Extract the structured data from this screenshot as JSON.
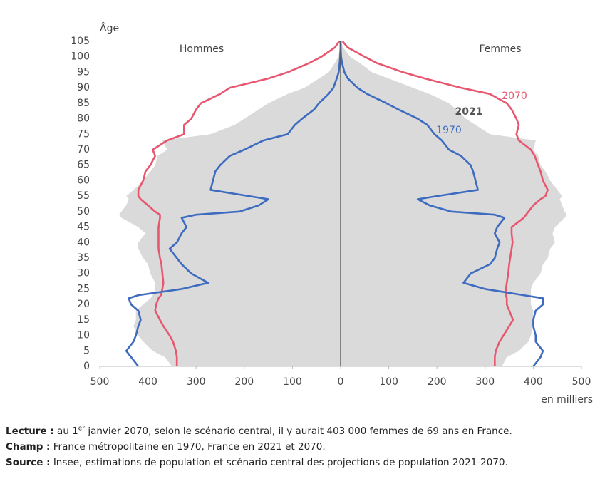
{
  "chart_data": {
    "type": "pyramid",
    "y_label": "Âge",
    "x_label": "en milliers",
    "left_label": "Hommes",
    "right_label": "Femmes",
    "xlim": [
      -500,
      500
    ],
    "xticks": [
      {
        "value": -500,
        "label": "500"
      },
      {
        "value": -400,
        "label": "400"
      },
      {
        "value": -300,
        "label": "300"
      },
      {
        "value": -200,
        "label": "200"
      },
      {
        "value": -100,
        "label": "100"
      },
      0,
      100,
      200,
      300,
      400,
      500
    ],
    "ylim": [
      0,
      105
    ],
    "yticks": [
      0,
      5,
      10,
      15,
      20,
      25,
      30,
      35,
      40,
      45,
      50,
      55,
      60,
      65,
      70,
      75,
      80,
      85,
      90,
      95,
      100,
      105
    ],
    "ages": [
      0,
      3,
      5,
      8,
      10,
      13,
      15,
      18,
      20,
      22,
      23,
      25,
      27,
      30,
      33,
      35,
      38,
      40,
      43,
      45,
      48,
      49,
      50,
      52,
      54,
      55,
      57,
      60,
      63,
      65,
      68,
      70,
      73,
      75,
      78,
      80,
      83,
      85,
      88,
      90,
      93,
      95,
      98,
      100,
      103,
      105
    ],
    "series": [
      {
        "name": "2021",
        "style": "area",
        "color": "#dadada",
        "label_color": "#555555",
        "men": [
          350,
          365,
          390,
          410,
          420,
          430,
          425,
          425,
          410,
          395,
          390,
          385,
          385,
          395,
          400,
          410,
          420,
          420,
          405,
          420,
          455,
          460,
          455,
          445,
          440,
          445,
          430,
          410,
          395,
          385,
          380,
          360,
          370,
          270,
          220,
          200,
          170,
          150,
          110,
          75,
          45,
          25,
          12,
          5,
          1,
          0
        ],
        "women": [
          335,
          345,
          370,
          390,
          395,
          400,
          400,
          400,
          395,
          395,
          395,
          395,
          400,
          415,
          420,
          430,
          435,
          445,
          440,
          445,
          465,
          470,
          465,
          460,
          455,
          460,
          450,
          435,
          425,
          415,
          410,
          400,
          405,
          310,
          280,
          260,
          240,
          225,
          185,
          150,
          100,
          65,
          40,
          20,
          5,
          1
        ]
      },
      {
        "name": "2070",
        "style": "line",
        "color": "#e8566f",
        "label_color": "#e8566f",
        "men": [
          340,
          340,
          342,
          348,
          355,
          368,
          375,
          385,
          383,
          378,
          373,
          370,
          368,
          370,
          372,
          375,
          378,
          378,
          378,
          378,
          375,
          375,
          385,
          400,
          415,
          420,
          420,
          410,
          405,
          395,
          385,
          390,
          360,
          325,
          325,
          310,
          300,
          290,
          250,
          230,
          150,
          110,
          65,
          40,
          12,
          3
        ],
        "women": [
          320,
          320,
          322,
          330,
          338,
          350,
          358,
          350,
          345,
          345,
          343,
          343,
          345,
          348,
          350,
          352,
          355,
          357,
          355,
          355,
          380,
          385,
          390,
          400,
          415,
          425,
          430,
          420,
          415,
          410,
          403,
          395,
          370,
          365,
          370,
          365,
          355,
          345,
          310,
          250,
          175,
          130,
          75,
          50,
          15,
          4
        ]
      },
      {
        "name": "1970",
        "style": "line",
        "color": "#3d6bbf",
        "label_color": "#3d6bbf",
        "men": [
          420,
          435,
          445,
          430,
          425,
          420,
          415,
          420,
          435,
          440,
          420,
          330,
          275,
          310,
          330,
          340,
          355,
          340,
          330,
          320,
          330,
          300,
          210,
          170,
          150,
          190,
          270,
          265,
          260,
          250,
          230,
          200,
          160,
          110,
          95,
          80,
          55,
          45,
          25,
          15,
          8,
          4,
          2,
          1,
          0,
          0
        ],
        "women": [
          400,
          415,
          420,
          405,
          405,
          400,
          400,
          405,
          420,
          420,
          380,
          300,
          255,
          270,
          310,
          320,
          325,
          330,
          320,
          325,
          340,
          320,
          230,
          185,
          160,
          200,
          285,
          280,
          275,
          270,
          250,
          225,
          210,
          195,
          180,
          160,
          120,
          95,
          55,
          35,
          15,
          8,
          3,
          1,
          0,
          0
        ]
      }
    ]
  },
  "notes": [
    {
      "label": "Lecture :",
      "text_before": "au 1",
      "sup": "er",
      "text_after": "janvier 2070, selon le scénario central, il y aurait 403 000 femmes de 69 ans en France."
    },
    {
      "label": "Champ :",
      "text": "France métropolitaine en 1970, France en 2021 et 2070."
    },
    {
      "label": "Source :",
      "text": "Insee, estimations de population et scénario central des projections de population 2021-2070."
    }
  ]
}
